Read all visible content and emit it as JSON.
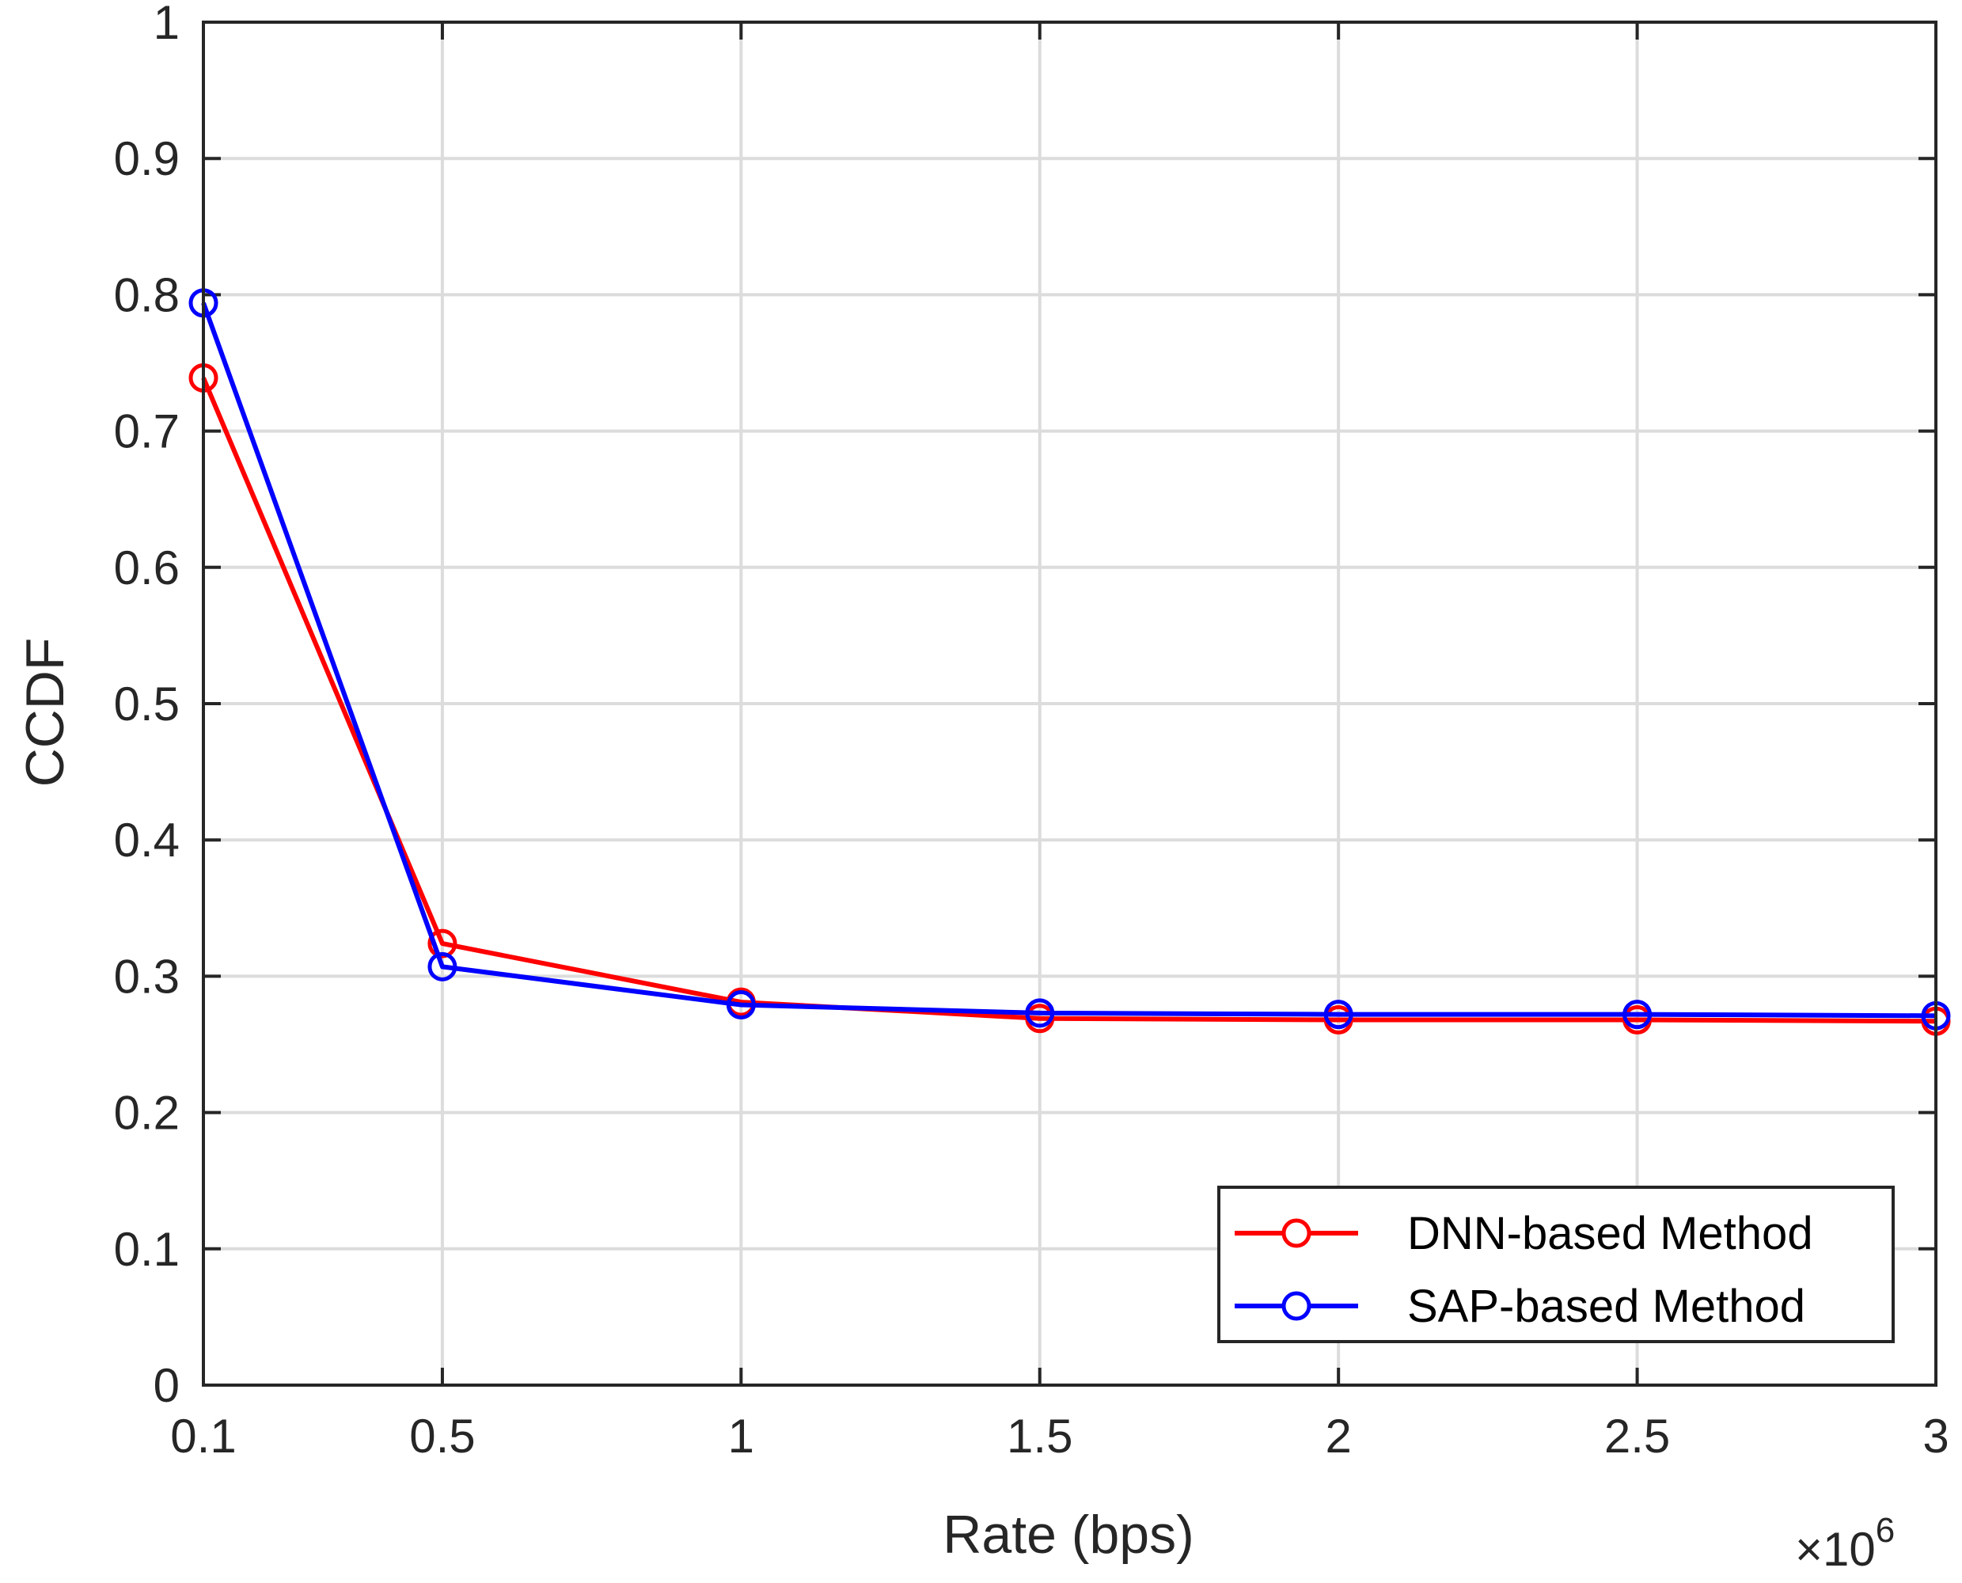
{
  "chart_data": {
    "type": "line",
    "title": "",
    "xlabel": "Rate (bps)",
    "ylabel": "CCDF",
    "x_multiplier_base": "×10",
    "x_multiplier_exp": "6",
    "x": [
      0.1,
      0.5,
      1,
      1.5,
      2,
      2.5,
      3
    ],
    "x_tick_values": [
      0.1,
      0.5,
      1,
      1.5,
      2,
      2.5,
      3
    ],
    "x_tick_labels": [
      "0.1",
      "0.5",
      "1",
      "1.5",
      "2",
      "2.5",
      "3"
    ],
    "y_tick_values": [
      0,
      0.1,
      0.2,
      0.3,
      0.4,
      0.5,
      0.6,
      0.7,
      0.8,
      0.9,
      1
    ],
    "y_tick_labels": [
      "0",
      "0.1",
      "0.2",
      "0.3",
      "0.4",
      "0.5",
      "0.6",
      "0.7",
      "0.8",
      "0.9",
      "1"
    ],
    "xlim": [
      0.1,
      3
    ],
    "ylim": [
      0,
      1
    ],
    "grid": true,
    "legend_position": "bottom-right",
    "series": [
      {
        "name": "DNN-based Method",
        "color": "#ff0000",
        "marker": "circle",
        "values": [
          0.739,
          0.324,
          0.281,
          0.269,
          0.268,
          0.268,
          0.267
        ]
      },
      {
        "name": "SAP-based Method",
        "color": "#0000ff",
        "marker": "circle",
        "values": [
          0.794,
          0.307,
          0.279,
          0.273,
          0.272,
          0.272,
          0.271
        ]
      }
    ]
  }
}
